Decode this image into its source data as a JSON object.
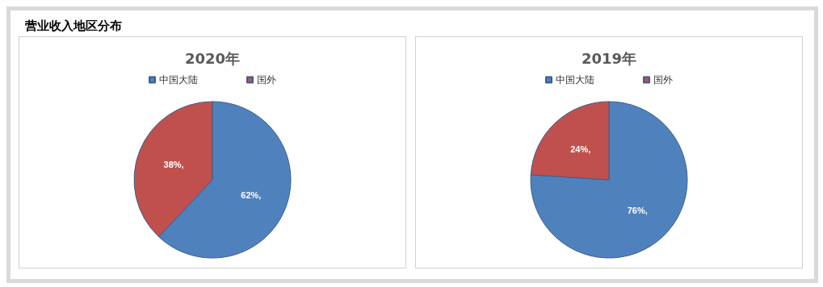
{
  "chart_data": [
    {
      "type": "other",
      "title": "营业收入地区分布"
    },
    {
      "type": "pie",
      "title": "2020年",
      "categories": [
        "中国大陆",
        "国外"
      ],
      "values": [
        62,
        38
      ],
      "colors": [
        "#4f81bd",
        "#c0504d"
      ],
      "value_labels": [
        "62%,",
        "38%,"
      ],
      "legend": "top"
    },
    {
      "type": "pie",
      "title": "2019年",
      "categories": [
        "中国大陆",
        "国外"
      ],
      "values": [
        76,
        24
      ],
      "colors": [
        "#4f81bd",
        "#c0504d"
      ],
      "value_labels": [
        "76%,",
        "24%,"
      ],
      "legend": "top"
    }
  ]
}
